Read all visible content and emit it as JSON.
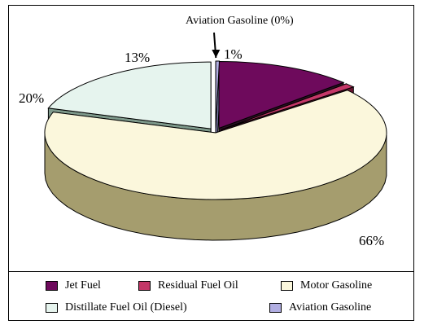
{
  "chart_data": {
    "type": "pie",
    "title": "",
    "slices": [
      {
        "label": "Jet Fuel",
        "value": 13,
        "value_label": "13%",
        "color": "#6e0a5c",
        "side": "#2a0f21",
        "exploded": true
      },
      {
        "label": "Residual Fuel Oil",
        "value": 1,
        "value_label": "1%",
        "color": "#c43768",
        "side": "#6a1530",
        "exploded": true
      },
      {
        "label": "Motor Gasoline",
        "value": 66,
        "value_label": "66%",
        "color": "#fbf7dc",
        "side": "#a59d6e",
        "exploded": false
      },
      {
        "label": "Distillate Fuel Oil (Diesel)",
        "value": 20,
        "value_label": "20%",
        "color": "#e6f4ee",
        "side": "#7e998b",
        "exploded": true
      },
      {
        "label": "Aviation Gasoline",
        "value": 0,
        "value_label": "",
        "color": "#b1aee2",
        "side": "#7a77a8",
        "exploded": true
      }
    ],
    "annotations": [
      {
        "text": "Aviation Gasoline (0%)",
        "target": "Aviation Gasoline"
      }
    ],
    "legend_position": "bottom",
    "three_d": true
  },
  "legend": {
    "items": [
      {
        "label": "Jet Fuel",
        "color": "#6e0a5c"
      },
      {
        "label": "Residual Fuel Oil",
        "color": "#c43768"
      },
      {
        "label": "Motor Gasoline",
        "color": "#fbf7dc"
      },
      {
        "label": "Distillate Fuel Oil (Diesel)",
        "color": "#e6f4ee"
      },
      {
        "label": "Aviation Gasoline",
        "color": "#b1aee2"
      }
    ]
  }
}
